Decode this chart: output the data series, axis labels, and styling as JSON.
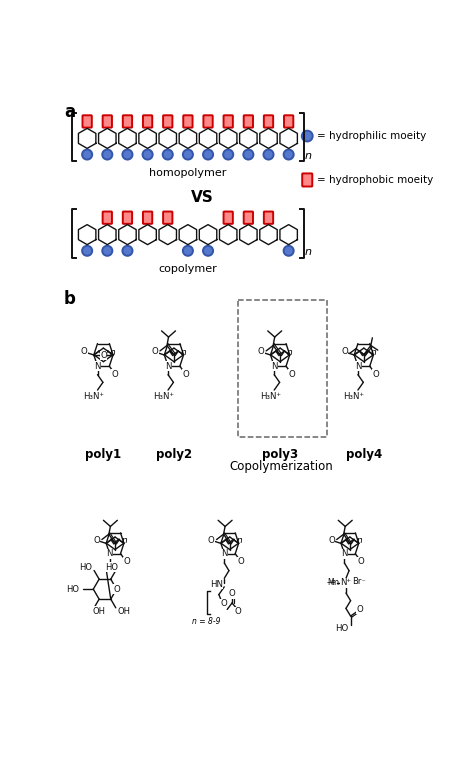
{
  "fig_width": 4.74,
  "fig_height": 7.81,
  "bg_color": "#ffffff",
  "panel_a_label": "a",
  "panel_b_label": "b",
  "homopolymer_label": "homopolymer",
  "vs_label": "VS",
  "copolymer_label": "copolymer",
  "hydrophilic_label": "= hydrophilic moeity",
  "hydrophobic_label": "= hydrophobic moeity",
  "poly_labels": [
    "poly1",
    "poly2",
    "poly3",
    "poly4"
  ],
  "copolymerization_label": "Copolymerization",
  "blue_circle_face": "#5577CC",
  "blue_circle_edge": "#3355AA",
  "red_rect_face": "#FF6666",
  "red_rect_edge": "#CC0000",
  "bond_color": "#111111",
  "n_homo": 11,
  "n_co": 11,
  "co_red_positions": [
    1,
    2,
    3,
    4,
    7,
    8,
    9
  ],
  "co_blue_positions": [
    0,
    1,
    2,
    5,
    6,
    10
  ]
}
